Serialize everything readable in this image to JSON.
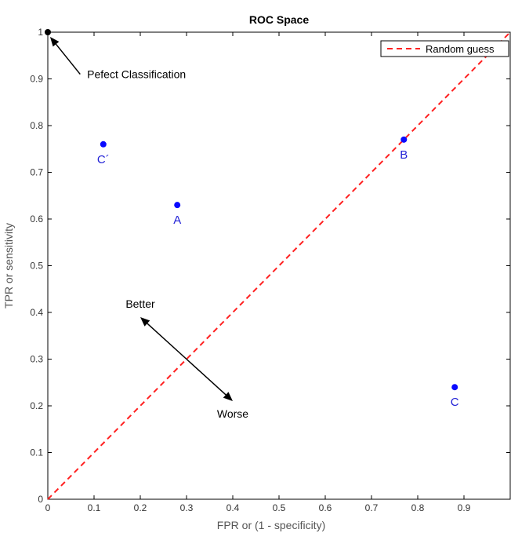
{
  "chart_data": {
    "type": "scatter",
    "title": "ROC Space",
    "xlabel": "FPR or (1 - specificity)",
    "ylabel": "TPR or sensitivity",
    "xlim": [
      0,
      1
    ],
    "ylim": [
      0,
      1
    ],
    "grid": false,
    "legend_position": "top-right",
    "x_ticks": [
      0,
      0.1,
      0.2,
      0.3,
      0.4,
      0.5,
      0.6,
      0.7,
      0.8,
      0.9
    ],
    "x_tick_labels": [
      "0",
      "0.1",
      "0.2",
      "0.3",
      "0.4",
      "0.5",
      "0.6",
      "0.7",
      "0.8",
      "0.9"
    ],
    "y_ticks": [
      0,
      0.1,
      0.2,
      0.3,
      0.4,
      0.5,
      0.6,
      0.7,
      0.8,
      0.9,
      1
    ],
    "y_tick_labels": [
      "0",
      "0.1",
      "0.2",
      "0.3",
      "0.4",
      "0.5",
      "0.6",
      "0.7",
      "0.8",
      "0.9",
      "1"
    ],
    "points": [
      {
        "label": "A",
        "x": 0.28,
        "y": 0.63
      },
      {
        "label": "B",
        "x": 0.77,
        "y": 0.77
      },
      {
        "label": "C",
        "x": 0.88,
        "y": 0.24
      },
      {
        "label": "C´",
        "x": 0.12,
        "y": 0.76
      }
    ],
    "perfect_point": {
      "x": 0,
      "y": 1
    },
    "reference_line": {
      "name": "Random guess",
      "x": [
        0,
        1
      ],
      "y": [
        0,
        1
      ],
      "style": "dashed",
      "color": "#ff2020"
    },
    "annotations": [
      {
        "text": "Pefect Classification",
        "arrow_from": [
          0.07,
          0.91
        ],
        "arrow_to": [
          0.005,
          0.99
        ]
      },
      {
        "text": "Better",
        "arrow_from": [
          0.3,
          0.3
        ],
        "arrow_to": [
          0.2,
          0.39
        ]
      },
      {
        "text": "Worse",
        "arrow_from": [
          0.3,
          0.3
        ],
        "arrow_to": [
          0.4,
          0.21
        ]
      }
    ],
    "point_color": "#0a0aff"
  }
}
